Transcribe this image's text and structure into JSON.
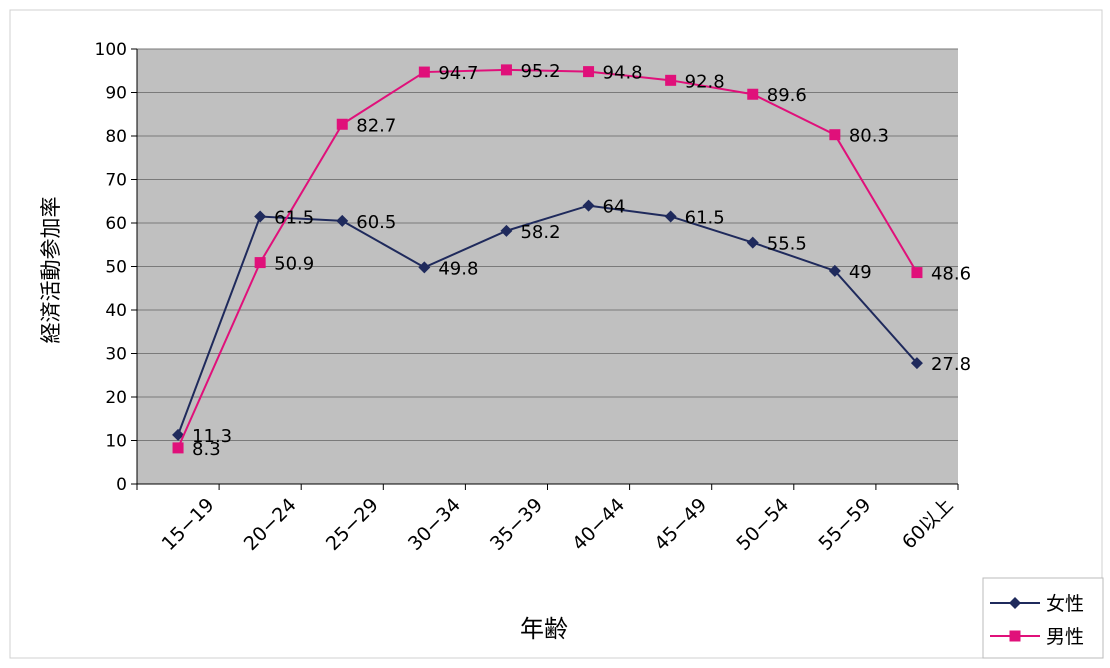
{
  "chart_data": {
    "type": "line",
    "title": "",
    "xlabel": "年齢",
    "ylabel": "経済活動参加率",
    "categories": [
      "15−19",
      "20−24",
      "25−29",
      "30−34",
      "35−39",
      "40−44",
      "45−49",
      "50−54",
      "55−59",
      "60以上"
    ],
    "ylim": [
      0,
      100
    ],
    "yticks": [
      0,
      10,
      20,
      30,
      40,
      50,
      60,
      70,
      80,
      90,
      100
    ],
    "grid": true,
    "legend_position": "bottom-right",
    "series": [
      {
        "name": "女性",
        "color": "#1f2a5c",
        "marker": "diamond",
        "values": [
          11.3,
          61.5,
          60.5,
          49.8,
          58.2,
          64,
          61.5,
          55.5,
          49,
          27.8
        ],
        "labels": [
          "11.3",
          "61.5",
          "60.5",
          "49.8",
          "58.2",
          "64",
          "61.5",
          "55.5",
          "49",
          "27.8"
        ]
      },
      {
        "name": "男性",
        "color": "#e0107a",
        "marker": "square",
        "values": [
          8.3,
          50.9,
          82.7,
          94.7,
          95.2,
          94.8,
          92.8,
          89.6,
          80.3,
          48.6
        ],
        "labels": [
          "8.3",
          "50.9",
          "82.7",
          "94.7",
          "95.2",
          "94.8",
          "92.8",
          "89.6",
          "80.3",
          "48.6"
        ]
      }
    ],
    "plot_background": "#c0c0c0"
  }
}
